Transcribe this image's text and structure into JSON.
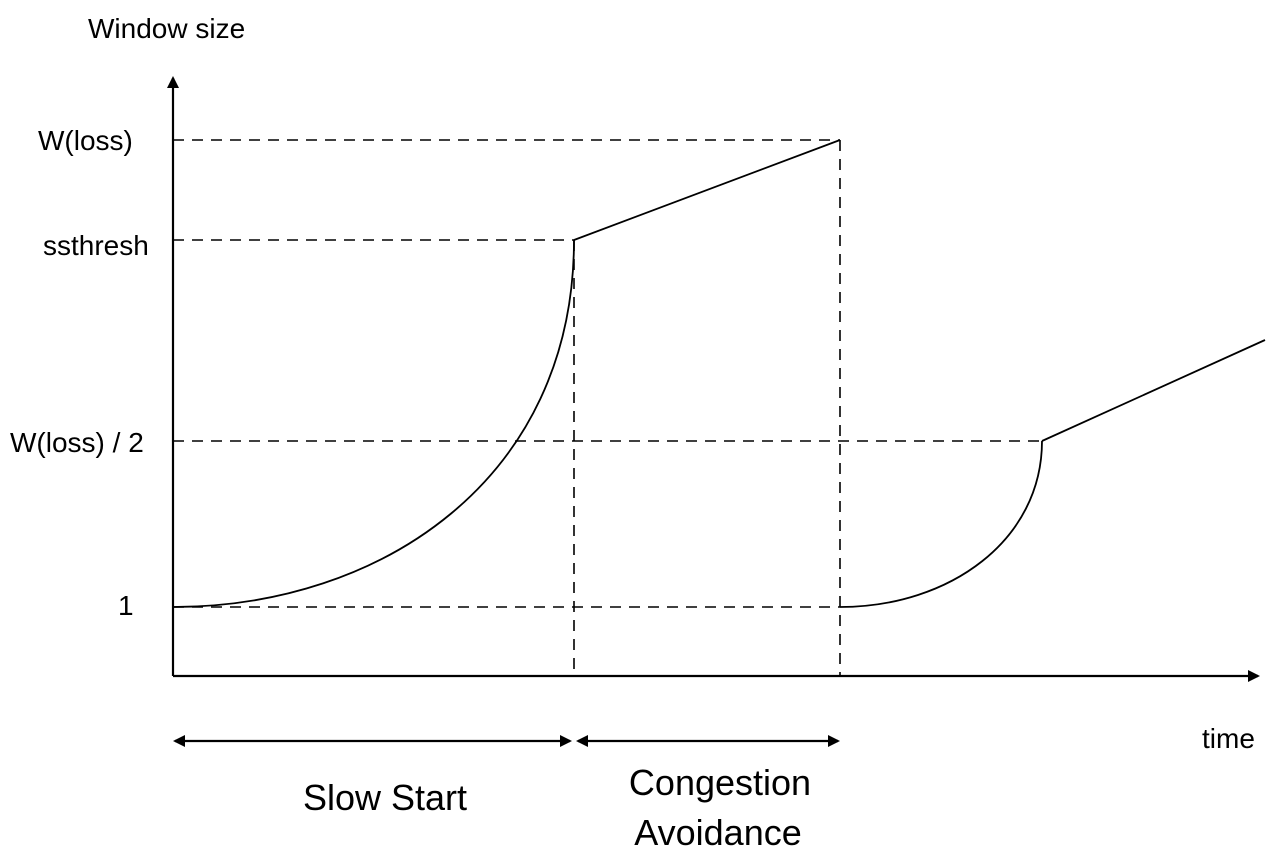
{
  "axes": {
    "y_label": "Window size",
    "x_label": "time"
  },
  "levels": {
    "w_loss": "W(loss)",
    "ssthresh": "ssthresh",
    "w_loss_half": "W(loss) / 2",
    "one": "1"
  },
  "phases": {
    "slow_start": "Slow Start",
    "congestion_line1": "Congestion",
    "congestion_line2": "Avoidance"
  }
}
